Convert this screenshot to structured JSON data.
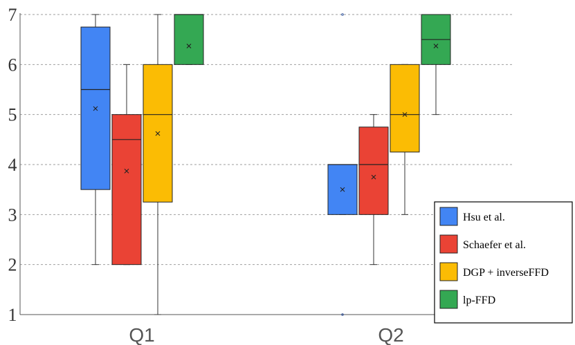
{
  "chart_data": {
    "type": "box",
    "categories": [
      "Q1",
      "Q2"
    ],
    "ylim": [
      1,
      7
    ],
    "yticks": [
      "1",
      "2",
      "3",
      "4",
      "5",
      "6",
      "7"
    ],
    "grid": true,
    "legend_position": "bottom-right",
    "series": [
      {
        "name": "Hsu et al.",
        "color": "#4285F4",
        "boxes": [
          {
            "min": 2,
            "q1": 3.5,
            "median": 5.5,
            "q3": 6.75,
            "max": 7,
            "mean": 5.12,
            "outliers": []
          },
          {
            "min": 3,
            "q1": 3,
            "median": 4,
            "q3": 4,
            "max": 4,
            "mean": 3.5,
            "outliers": [
              1,
              7
            ]
          }
        ]
      },
      {
        "name": "Schaefer et al.",
        "color": "#EA4335",
        "boxes": [
          {
            "min": 2,
            "q1": 2,
            "median": 4.5,
            "q3": 5,
            "max": 6,
            "mean": 3.87,
            "outliers": []
          },
          {
            "min": 2,
            "q1": 3,
            "median": 4,
            "q3": 4.75,
            "max": 5,
            "mean": 3.75,
            "outliers": []
          }
        ]
      },
      {
        "name": "DGP + inverseFFD",
        "color": "#FBBC04",
        "boxes": [
          {
            "min": 1,
            "q1": 3.25,
            "median": 5,
            "q3": 6,
            "max": 7,
            "mean": 4.62,
            "outliers": []
          },
          {
            "min": 3,
            "q1": 4.25,
            "median": 5,
            "q3": 6,
            "max": 6,
            "mean": 5,
            "outliers": []
          }
        ]
      },
      {
        "name": "lp-FFD",
        "color": "#34A853",
        "boxes": [
          {
            "min": 6,
            "q1": 6,
            "median": 7,
            "q3": 7,
            "max": 7,
            "mean": 6.37,
            "outliers": []
          },
          {
            "min": 5,
            "q1": 6,
            "median": 6.5,
            "q3": 7,
            "max": 7,
            "mean": 6.37,
            "outliers": []
          }
        ]
      }
    ]
  }
}
